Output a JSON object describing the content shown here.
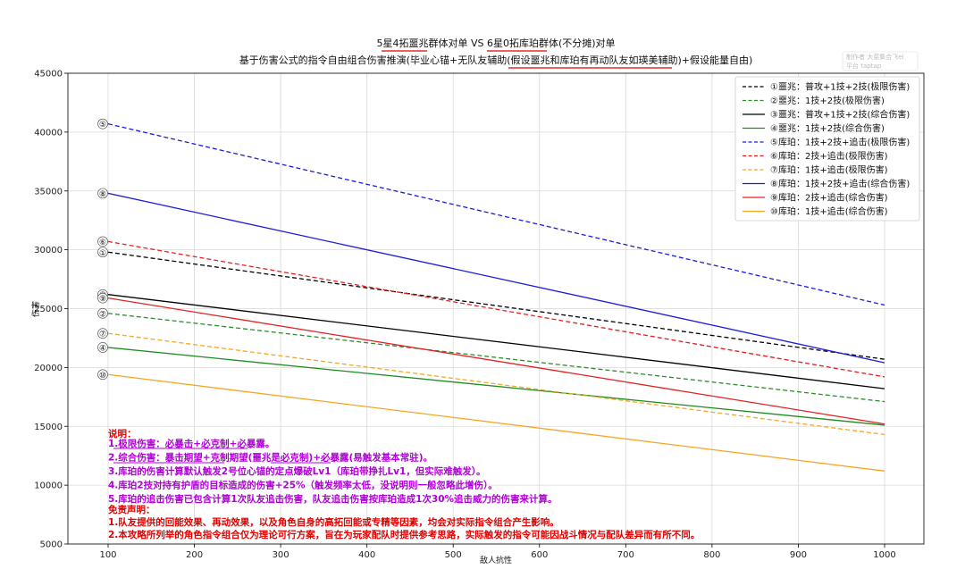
{
  "chart_data": {
    "type": "line",
    "title": "5星4拓噩兆群体对单 VS 6星0拓库珀群体(不分摊)对单",
    "subtitle": "基于伤害公式的指令自由组合伤害推演(毕业心锚+无队友辅助(假设噩兆和库珀有再动队友如瑛美辅助)+假设能量自由)",
    "xlabel": "敌人抗性",
    "ylabel": "伤害",
    "xlim": [
      100,
      1000
    ],
    "ylim": [
      5000,
      45000
    ],
    "x_ticks": [
      100,
      200,
      300,
      400,
      500,
      600,
      700,
      800,
      900,
      1000
    ],
    "y_ticks": [
      5000,
      10000,
      15000,
      20000,
      25000,
      30000,
      35000,
      40000,
      45000
    ],
    "grid": true,
    "legend_position": "top-right",
    "series": [
      {
        "name": "①噩兆：普攻+1技+2技(极限伤害)",
        "marker": "①",
        "color": "#000000",
        "dashed": true,
        "x": [
          100,
          1000
        ],
        "y": [
          29800,
          20700
        ]
      },
      {
        "name": "②噩兆：1技+2技(极限伤害)",
        "marker": "②",
        "color": "#2e8b2e",
        "dashed": true,
        "x": [
          100,
          1000
        ],
        "y": [
          24600,
          17100
        ]
      },
      {
        "name": "③噩兆：普攻+1技+2技(综合伤害)",
        "marker": "③",
        "color": "#000000",
        "dashed": false,
        "x": [
          100,
          1000
        ],
        "y": [
          26200,
          18200
        ]
      },
      {
        "name": "④噩兆：1技+2技(综合伤害)",
        "marker": "④",
        "color": "#1e8c1e",
        "dashed": false,
        "x": [
          100,
          1000
        ],
        "y": [
          21700,
          15100
        ]
      },
      {
        "name": "⑤库珀：1技+2技+追击(极限伤害)",
        "marker": "⑤",
        "color": "#1c1cdc",
        "dashed": true,
        "x": [
          100,
          1000
        ],
        "y": [
          40700,
          25300
        ]
      },
      {
        "name": "⑥库珀：2技+追击(极限伤害)",
        "marker": "⑥",
        "color": "#e52020",
        "dashed": true,
        "x": [
          100,
          1000
        ],
        "y": [
          30700,
          19200
        ]
      },
      {
        "name": "⑦库珀：1技+追击(极限伤害)",
        "marker": "⑦",
        "color": "#f5a623",
        "dashed": true,
        "x": [
          100,
          1000
        ],
        "y": [
          22900,
          14300
        ]
      },
      {
        "name": "⑧库珀：1技+2技+追击(综合伤害)",
        "marker": "⑧",
        "color": "#1c1cdc",
        "dashed": false,
        "x": [
          100,
          1000
        ],
        "y": [
          34800,
          20400
        ]
      },
      {
        "name": "⑨库珀：2技+追击(综合伤害)",
        "marker": "⑨",
        "color": "#e52020",
        "dashed": false,
        "x": [
          100,
          1000
        ],
        "y": [
          25900,
          15200
        ]
      },
      {
        "name": "⑩库珀：1技+追击(综合伤害)",
        "marker": "⑩",
        "color": "#f5a623",
        "dashed": false,
        "x": [
          100,
          1000
        ],
        "y": [
          19400,
          11200
        ]
      }
    ]
  },
  "notes": {
    "heading": "说明：",
    "lines": [
      "1.极限伤害：必暴击+必克制+必暴露。",
      "2.综合伤害：暴击期望+克制期望(噩兆是必克制)+必暴露(易触发基本常驻)。",
      "3.库珀的伤害计算默认触发2号位心锚的定点爆破Lv1（库珀带挣扎Lv1，但实际难触发）。",
      "4.库珀2技对持有护盾的目标造成的伤害+25%（触发频率太低，没说明则一般忽略此增伤）。",
      "5.库珀的追击伤害已包含计算1次队友追击伤害，队友追击伤害按库珀造成1次30%追击威力的伤害来计算。"
    ],
    "color": "#b000d8"
  },
  "disclaimer": {
    "heading": "免责声明：",
    "lines": [
      "1.队友提供的回能效果、再动效果，以及角色自身的高拓回能或专精等因素，均会对实际指令组合产生影响。",
      "2.本攻略所列举的角色指令组合仅为理论可行方案，旨在为玩家配队时提供参考思路，实际触发的指令可能因战斗情况与配队差异而有所不同。"
    ],
    "color": "#e00000"
  },
  "watermark": {
    "author": "制作者 大菜集合飞ei",
    "platform": "平台 taptap"
  }
}
